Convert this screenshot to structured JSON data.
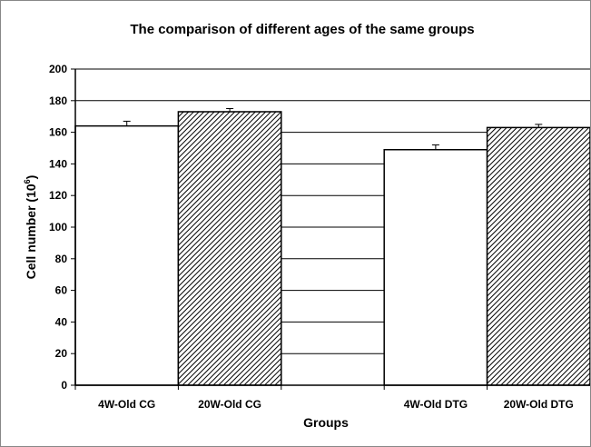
{
  "chart_data": {
    "type": "bar",
    "title": "The comparison of different ages of the same groups",
    "xlabel": "Groups",
    "ylabel_main": "Cell number (10",
    "ylabel_sup": "6",
    "ylabel_close": ")",
    "ylim": [
      0,
      200
    ],
    "ytick_step": 20,
    "yticks": [
      "0",
      "20",
      "40",
      "60",
      "80",
      "100",
      "120",
      "140",
      "160",
      "180",
      "200"
    ],
    "grid": true,
    "categories": [
      "4W-Old CG",
      "20W-Old CG",
      "",
      "4W-Old DTG",
      "20W-Old DTG"
    ],
    "values": [
      164,
      173,
      null,
      149,
      163
    ],
    "errors": [
      3,
      2,
      null,
      3,
      2
    ],
    "fills": [
      "plain",
      "hatched",
      "none",
      "plain",
      "hatched"
    ],
    "colors": {
      "bar_plain": "#ffffff",
      "bar_hatch_bg": "#ffffff",
      "bar_hatch_line": "#000000",
      "grid": "#000000"
    }
  }
}
